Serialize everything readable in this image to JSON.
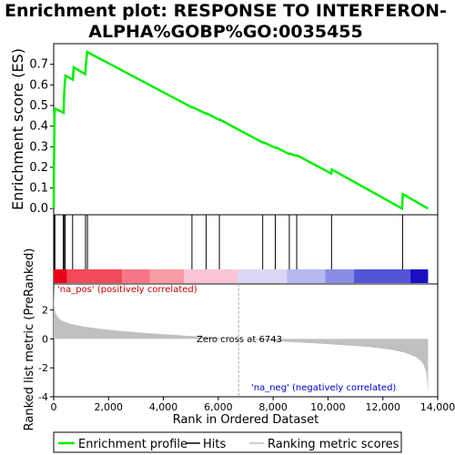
{
  "title_line1": "Enrichment plot: RESPONSE TO INTERFERON-",
  "title_line2": "ALPHA%GOBP%GO:0035455",
  "colors": {
    "es_line": "#00ee00",
    "hits": "#000000",
    "metric_fill": "#c0c0c0",
    "pos_text": "#cc0000",
    "neg_text": "#0000cc",
    "zero_line": "#aaaaaa"
  },
  "chart_data": [
    {
      "type": "line",
      "name": "enrichment-profile",
      "ylabel": "Enrichment score (ES)",
      "ylim": [
        -0.03,
        0.8
      ],
      "yticks": [
        0.0,
        0.1,
        0.2,
        0.3,
        0.4,
        0.5,
        0.6,
        0.7
      ],
      "xlim": [
        0,
        14000
      ],
      "grid": false,
      "x": [
        0,
        10,
        20,
        30,
        40,
        360,
        380,
        400,
        430,
        700,
        730,
        1150,
        1180,
        1220,
        5050,
        5060,
        5560,
        5580,
        6040,
        6060,
        7620,
        7640,
        8080,
        8100,
        8580,
        8600,
        8860,
        8880,
        10120,
        10140,
        12700,
        12730,
        13650
      ],
      "y": [
        0.0,
        0.19,
        0.33,
        0.45,
        0.485,
        0.465,
        0.555,
        0.6,
        0.645,
        0.625,
        0.685,
        0.652,
        0.71,
        0.76,
        0.49,
        0.492,
        0.46,
        0.462,
        0.43,
        0.432,
        0.32,
        0.322,
        0.295,
        0.297,
        0.265,
        0.267,
        0.255,
        0.258,
        0.17,
        0.19,
        0.0,
        0.07,
        0.0
      ]
    },
    {
      "type": "hits",
      "name": "hits",
      "x": [
        10,
        25,
        45,
        350,
        390,
        420,
        690,
        1160,
        1230,
        5040,
        5560,
        6040,
        7620,
        8080,
        8590,
        8860,
        10130,
        12720
      ]
    },
    {
      "type": "area",
      "name": "ranking-metric",
      "ylabel": "Ranked list metric (PreRanked)",
      "xlabel": "Rank in Ordered Dataset",
      "ylim": [
        -4,
        3.8
      ],
      "yticks": [
        -4,
        -2,
        0,
        2
      ],
      "xlim": [
        0,
        14000
      ],
      "xticks": [
        0,
        2000,
        4000,
        6000,
        8000,
        10000,
        12000,
        14000
      ],
      "xtick_labels": [
        "0",
        "2,000",
        "4,000",
        "6,000",
        "8,000",
        "10,000",
        "12,000",
        "14,000"
      ],
      "x": [
        0,
        20,
        60,
        150,
        300,
        600,
        1000,
        1500,
        2000,
        3000,
        4000,
        5000,
        6000,
        6743,
        7500,
        8500,
        9500,
        10500,
        11500,
        12300,
        12800,
        13200,
        13400,
        13500,
        13580,
        13620,
        13650
      ],
      "y": [
        3.5,
        2.3,
        1.8,
        1.5,
        1.25,
        1.05,
        0.88,
        0.74,
        0.63,
        0.46,
        0.32,
        0.2,
        0.08,
        0.0,
        -0.09,
        -0.2,
        -0.3,
        -0.42,
        -0.56,
        -0.75,
        -0.95,
        -1.25,
        -1.55,
        -1.85,
        -2.3,
        -2.9,
        -3.75
      ],
      "zero_cross": 6743,
      "zero_cross_label": "Zero cross at 6743",
      "pos_label": "'na_pos' (positively correlated)",
      "neg_label": "'na_neg' (negatively correlated)"
    }
  ],
  "color_bar": [
    {
      "from": 0,
      "to": 480,
      "color": "#e8001a"
    },
    {
      "from": 480,
      "to": 2500,
      "color": "#f24a58"
    },
    {
      "from": 2500,
      "to": 3500,
      "color": "#f77686"
    },
    {
      "from": 3500,
      "to": 4750,
      "color": "#fa9ca5"
    },
    {
      "from": 4750,
      "to": 6700,
      "color": "#fcc4d8"
    },
    {
      "from": 6700,
      "to": 8500,
      "color": "#dcd6f5"
    },
    {
      "from": 8500,
      "to": 9900,
      "color": "#b8b8f0"
    },
    {
      "from": 9900,
      "to": 10950,
      "color": "#8b8ce6"
    },
    {
      "from": 10950,
      "to": 13000,
      "color": "#5454d7"
    },
    {
      "from": 13000,
      "to": 13650,
      "color": "#1a0ec2"
    }
  ],
  "legend": {
    "items": [
      {
        "label": "Enrichment profile",
        "color": "#00ee00",
        "kind": "line-thick"
      },
      {
        "label": "Hits",
        "color": "#000000",
        "kind": "line"
      },
      {
        "label": "Ranking metric scores",
        "color": "#c0c0c0",
        "kind": "line"
      }
    ]
  }
}
